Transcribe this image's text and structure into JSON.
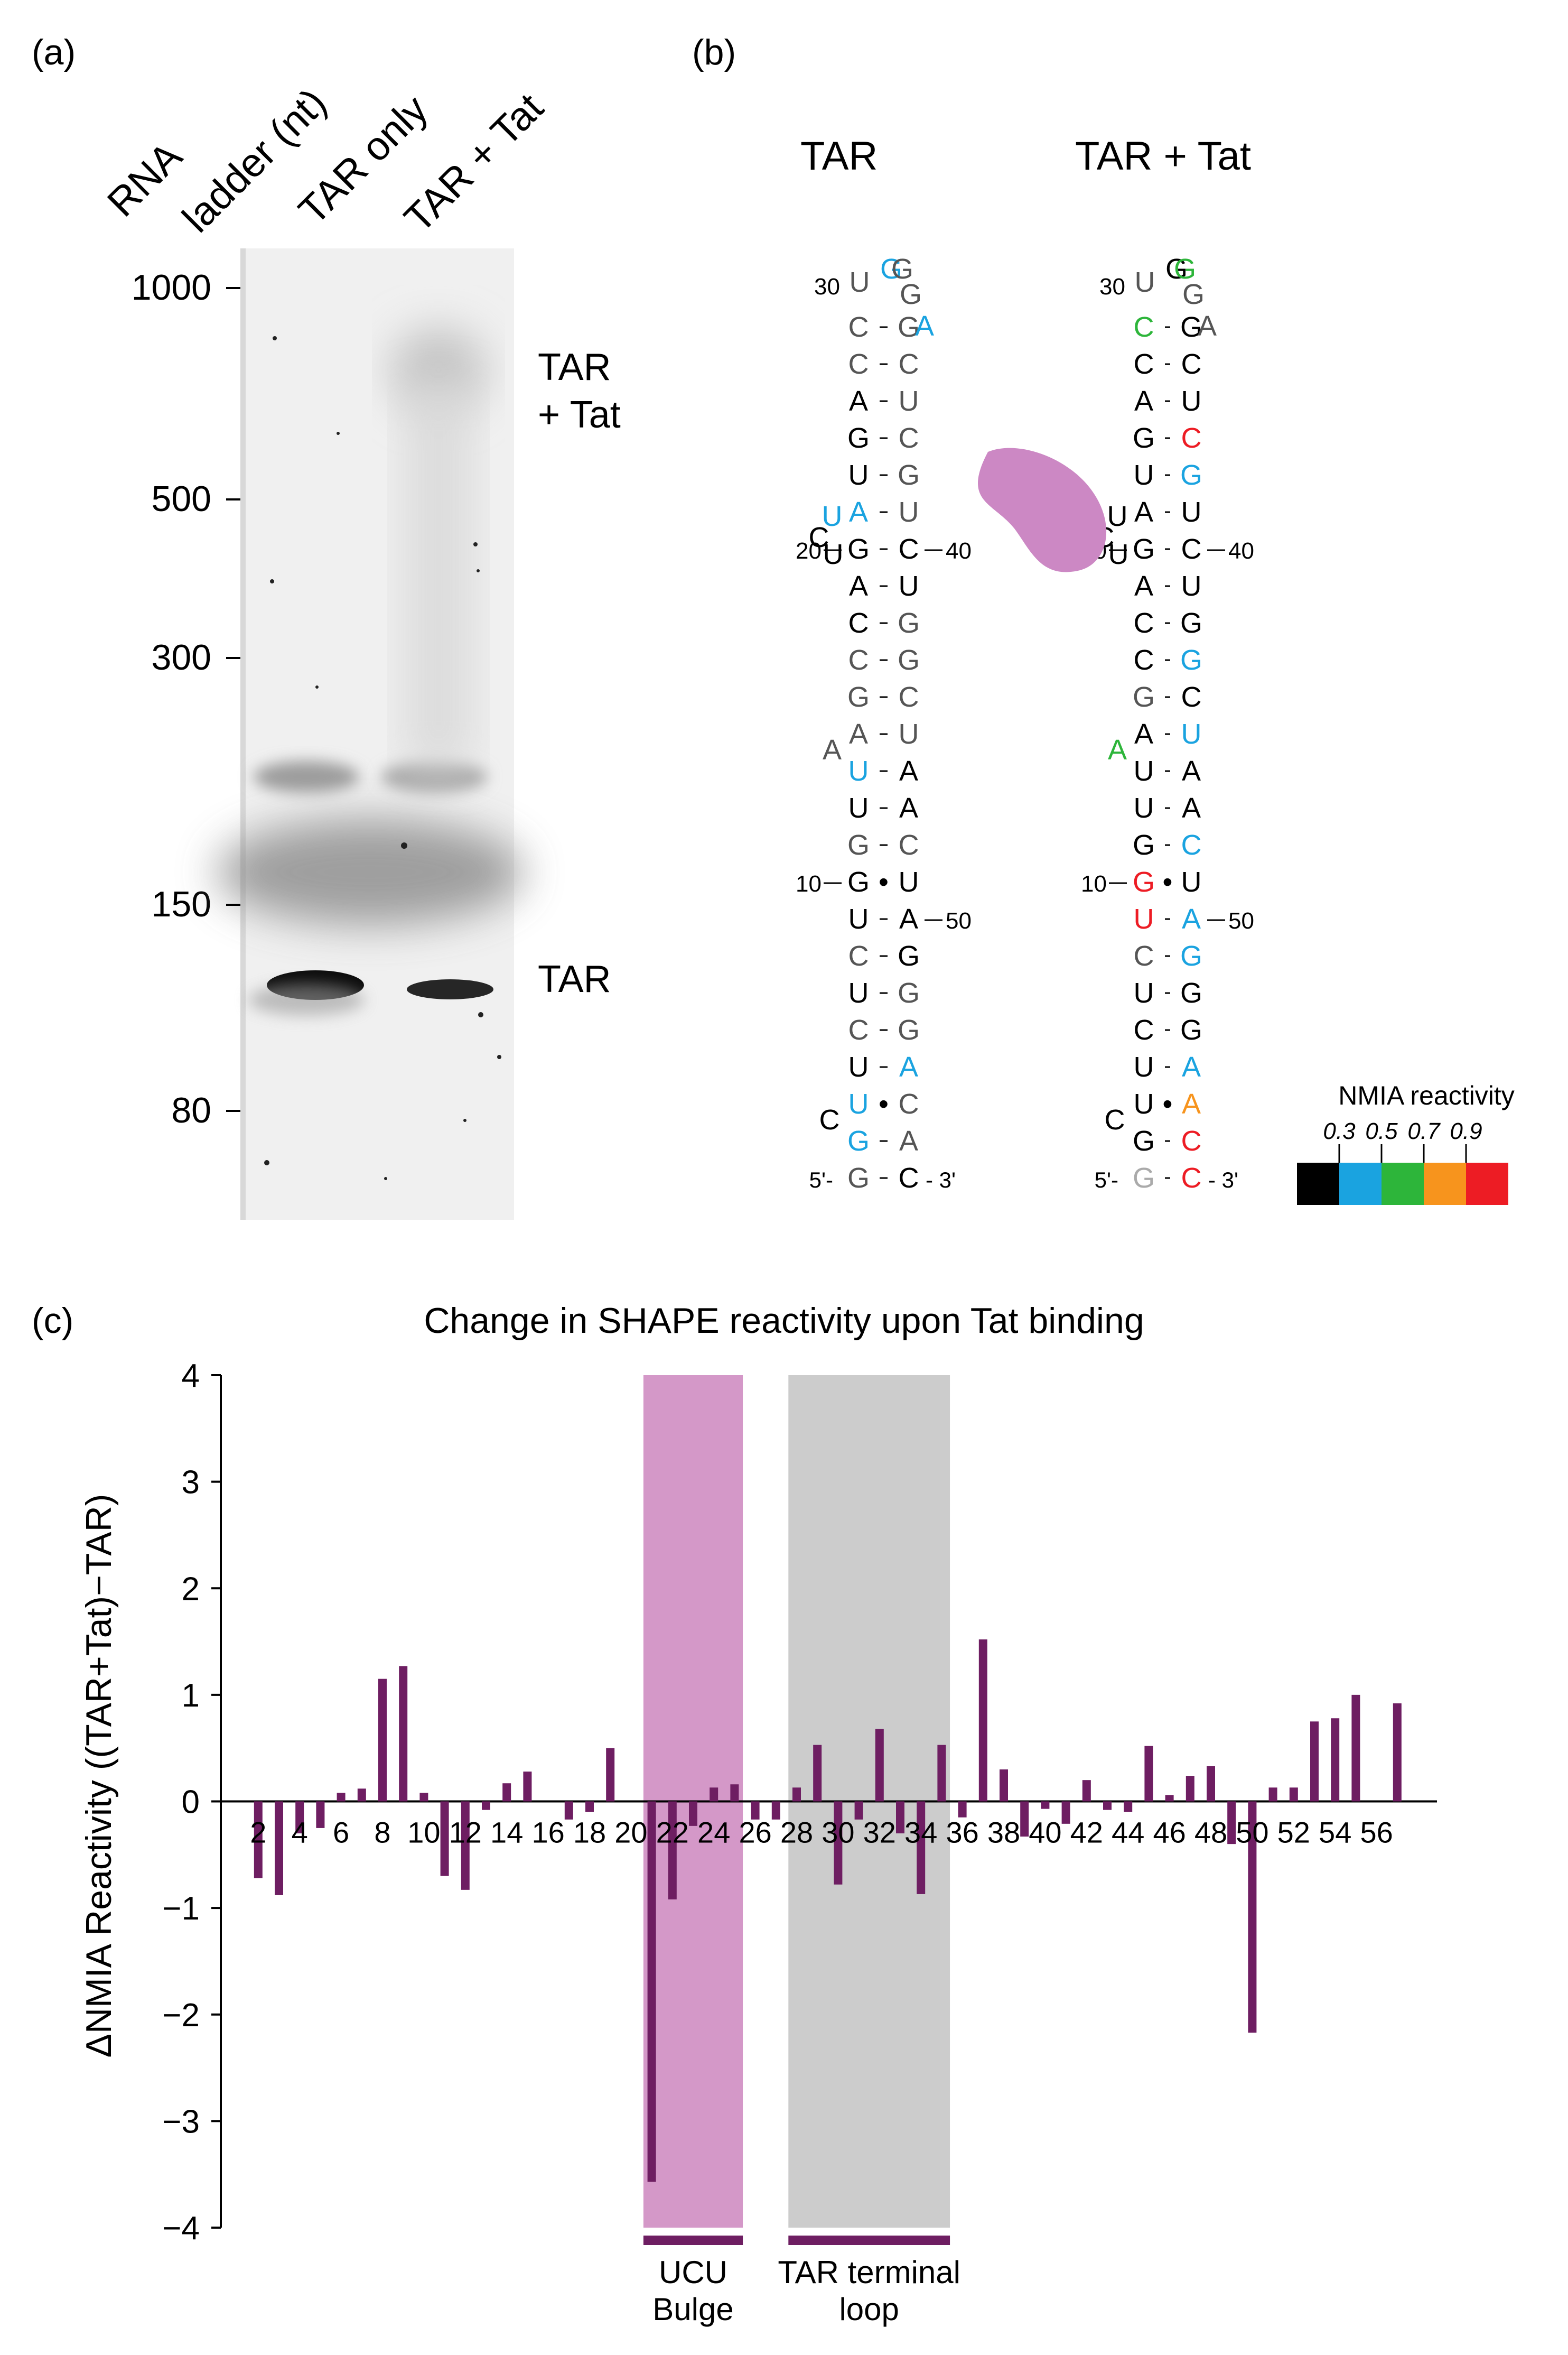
{
  "panels": {
    "a": "(a)",
    "b": "(b)",
    "c": "(c)"
  },
  "gel": {
    "lanes": [
      "RNA",
      "ladder (nt)",
      "TAR only",
      "TAR + Tat"
    ],
    "markers": [
      "1000",
      "500",
      "300",
      "150",
      "80"
    ],
    "bands": {
      "complex_line1": "TAR",
      "complex_line2": "+ Tat",
      "free": "TAR"
    }
  },
  "structure": {
    "titles": [
      "TAR",
      "TAR + Tat"
    ],
    "tar": {
      "left": [
        "G",
        "G",
        "U",
        "U",
        "C",
        "U",
        "C",
        "U",
        "G",
        "G",
        "U",
        "U",
        "A",
        "G",
        "C",
        "C",
        "A",
        "G",
        "A",
        "U",
        "G",
        "A",
        "C",
        "C"
      ],
      "right": [
        "C",
        "A",
        "C",
        "A",
        "G",
        "G",
        "G",
        "A",
        "U",
        "C",
        "A",
        "A",
        "U",
        "C",
        "G",
        "G",
        "U",
        "C",
        "U",
        "G",
        "C",
        "U",
        "C",
        "G"
      ],
      "loop": [
        "U",
        "G",
        "G",
        "G",
        "A"
      ]
    },
    "tat": {
      "left": [
        "G",
        "G",
        "U",
        "U",
        "C",
        "U",
        "C",
        "U",
        "G",
        "G",
        "U",
        "U",
        "A",
        "G",
        "C",
        "C",
        "A",
        "G",
        "A",
        "U",
        "G",
        "A",
        "C",
        "C"
      ],
      "right": [
        "C",
        "C",
        "A",
        "A",
        "G",
        "G",
        "G",
        "A",
        "U",
        "C",
        "A",
        "A",
        "U",
        "C",
        "G",
        "G",
        "U",
        "C",
        "U",
        "G",
        "C",
        "U",
        "C",
        "G"
      ],
      "loop": [
        "U",
        "G",
        "G",
        "G",
        "A"
      ]
    },
    "bulges": {
      "a_bulge": "A",
      "c_bulge": "C",
      "ucu_c": "C",
      "ucu_u1": "U",
      "ucu_u2": "U"
    },
    "numbers": {
      "n5p": "5'-",
      "n3p": "- 3'",
      "n10": "10",
      "n20": "20",
      "n30": "30",
      "n40": "40",
      "n50": "50"
    },
    "gu_pair": "•",
    "legend": {
      "title": "NMIA reactivity",
      "ticks": [
        "0.3",
        "0.5",
        "0.7",
        "0.9"
      ],
      "colors": [
        "#000000",
        "#1aa3e0",
        "#2db53a",
        "#f7941d",
        "#ed1c24"
      ]
    }
  },
  "chart_data": {
    "type": "bar",
    "title": "Change in SHAPE reactivity upon Tat binding",
    "xlabel": "",
    "ylabel": "ΔNMIA Reactivity ((TAR+Tat)−TAR)",
    "ylim": [
      -4,
      4
    ],
    "yticks": [
      "4",
      "3",
      "2",
      "1",
      "0",
      "-1",
      "-2",
      "-3",
      "-4"
    ],
    "x": [
      1,
      2,
      3,
      4,
      5,
      6,
      7,
      8,
      9,
      10,
      11,
      12,
      13,
      14,
      15,
      16,
      17,
      18,
      19,
      20,
      21,
      22,
      23,
      24,
      25,
      26,
      27,
      28,
      29,
      30,
      31,
      32,
      33,
      34,
      35,
      36,
      37,
      38,
      39,
      40,
      41,
      42,
      43,
      44,
      45,
      46,
      47,
      48,
      49,
      50,
      51,
      52,
      53,
      54,
      55,
      56,
      57
    ],
    "values": [
      0,
      -0.72,
      -0.88,
      -0.3,
      -0.25,
      0.08,
      0.12,
      1.15,
      1.27,
      0.08,
      -0.7,
      -0.83,
      -0.08,
      0.17,
      0.28,
      0,
      -0.17,
      -0.1,
      0.5,
      0,
      -3.57,
      -0.92,
      -0.23,
      0.13,
      0.16,
      -0.17,
      -0.17,
      0.13,
      0.53,
      -0.78,
      -0.17,
      0.68,
      -0.3,
      -0.87,
      0.53,
      -0.15,
      1.52,
      0.3,
      -0.33,
      -0.07,
      -0.21,
      0.2,
      -0.08,
      -0.1,
      0.52,
      0.06,
      0.24,
      0.33,
      -0.4,
      -2.17,
      0.13,
      0.13,
      0.75,
      0.78,
      1.0,
      0,
      0.92
    ],
    "xtick_labels": [
      "2",
      "4",
      "6",
      "8",
      "10",
      "12",
      "14",
      "16",
      "18",
      "20",
      "22",
      "24",
      "26",
      "28",
      "30",
      "32",
      "34",
      "36",
      "38",
      "40",
      "42",
      "44",
      "46",
      "48",
      "50",
      "52",
      "54",
      "56"
    ],
    "regions": [
      {
        "name": "UCU Bulge",
        "line1": "UCU",
        "line2": "Bulge",
        "from": 20.6,
        "to": 25.4,
        "color": "#d498c8"
      },
      {
        "name": "TAR terminal loop",
        "line1": "TAR terminal",
        "line2": "loop",
        "from": 27.6,
        "to": 35.4,
        "color": "#cccccc"
      }
    ],
    "bar_color": "#6e1e62"
  }
}
